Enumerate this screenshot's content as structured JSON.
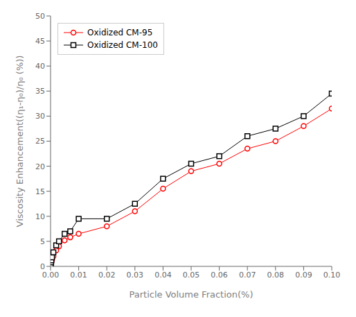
{
  "chart_data": {
    "type": "line",
    "xlabel": "Particle Volume Fraction(%)",
    "ylabel": "Viscosity Enhancement((η₁-η₀)/η₀ (%))",
    "x": [
      0.0001,
      0.0002,
      0.0003,
      0.0005,
      0.001,
      0.002,
      0.003,
      0.005,
      0.007,
      0.01,
      0.02,
      0.03,
      0.04,
      0.05,
      0.06,
      0.07,
      0.08,
      0.09,
      0.1
    ],
    "series": [
      {
        "name": "Oxidized CM-95",
        "color": "red",
        "marker": "o",
        "values": [
          0.3,
          0.6,
          0.9,
          1.3,
          2.0,
          3.2,
          4.0,
          5.2,
          5.8,
          6.5,
          8.0,
          11.0,
          15.5,
          19.0,
          20.5,
          23.5,
          25.0,
          28.0,
          31.5
        ]
      },
      {
        "name": "Oxidized CM-100",
        "color": "black",
        "marker": "s",
        "values": [
          0.4,
          0.8,
          1.2,
          1.8,
          2.8,
          4.2,
          5.0,
          6.5,
          7.0,
          9.5,
          9.5,
          12.5,
          17.5,
          20.5,
          22.0,
          26.0,
          27.5,
          30.0,
          34.5
        ]
      }
    ],
    "xlim": [
      0,
      0.1
    ],
    "ylim": [
      0,
      50
    ],
    "xticks": [
      {
        "value": 0.0,
        "label": "0.00"
      },
      {
        "value": 0.01,
        "label": "0.01"
      },
      {
        "value": 0.02,
        "label": "0.02"
      },
      {
        "value": 0.03,
        "label": "0.03"
      },
      {
        "value": 0.04,
        "label": "0.04"
      },
      {
        "value": 0.05,
        "label": "0.05"
      },
      {
        "value": 0.06,
        "label": "0.06"
      },
      {
        "value": 0.07,
        "label": "0.07"
      },
      {
        "value": 0.08,
        "label": "0.08"
      },
      {
        "value": 0.09,
        "label": "0.09"
      },
      {
        "value": 0.1,
        "label": "0.10"
      }
    ],
    "yticks": [
      0,
      5,
      10,
      15,
      20,
      25,
      30,
      35,
      40,
      45,
      50
    ],
    "grid": false,
    "legend": "upper left"
  }
}
